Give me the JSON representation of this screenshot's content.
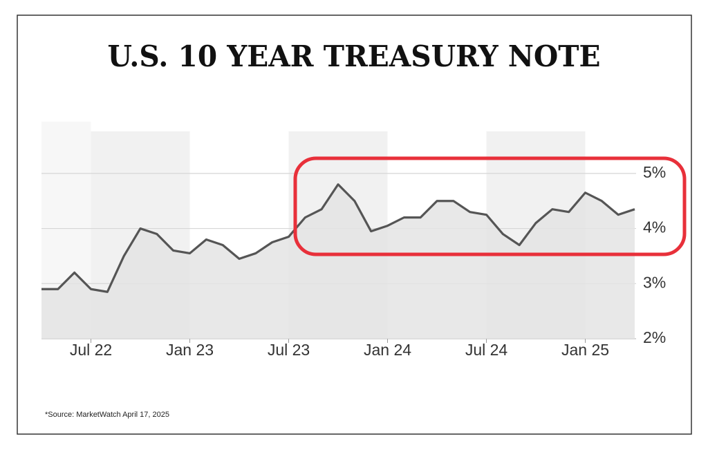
{
  "chart_data": {
    "type": "line",
    "title": "U.S. 10 YEAR TREASURY NOTE",
    "note": "*Source: MarketWatch April 17, 2025",
    "x": [
      "2022-04",
      "2022-05",
      "2022-06",
      "2022-07",
      "2022-08",
      "2022-09",
      "2022-10",
      "2022-11",
      "2022-12",
      "2023-01",
      "2023-02",
      "2023-03",
      "2023-04",
      "2023-05",
      "2023-06",
      "2023-07",
      "2023-08",
      "2023-09",
      "2023-10",
      "2023-11",
      "2023-12",
      "2024-01",
      "2024-02",
      "2024-03",
      "2024-04",
      "2024-05",
      "2024-06",
      "2024-07",
      "2024-08",
      "2024-09",
      "2024-10",
      "2024-11",
      "2024-12",
      "2025-01",
      "2025-02",
      "2025-03",
      "2025-04"
    ],
    "series": [
      {
        "name": "U.S. 10 Year Treasury Note",
        "color": "#555555",
        "values": [
          2.9,
          2.9,
          3.2,
          2.9,
          2.85,
          3.5,
          4.0,
          3.9,
          3.6,
          3.55,
          3.8,
          3.7,
          3.45,
          3.55,
          3.75,
          3.85,
          4.2,
          4.35,
          4.8,
          4.5,
          3.95,
          4.05,
          4.2,
          4.2,
          4.5,
          4.5,
          4.3,
          4.25,
          3.9,
          3.7,
          4.1,
          4.35,
          4.3,
          4.65,
          4.5,
          4.25,
          4.35
        ]
      }
    ],
    "fill": "#e4e4e4",
    "xlim": [
      "2022-04",
      "2025-04"
    ],
    "xticks": [
      {
        "value": "2022-07",
        "label": "Jul 22"
      },
      {
        "value": "2023-01",
        "label": "Jan 23"
      },
      {
        "value": "2023-07",
        "label": "Jul 23"
      },
      {
        "value": "2024-01",
        "label": "Jan 24"
      },
      {
        "value": "2024-07",
        "label": "Jul 24"
      },
      {
        "value": "2025-01",
        "label": "Jan 25"
      }
    ],
    "ylim": [
      2,
      5.5
    ],
    "yticks": [
      {
        "value": 2,
        "label": "2%"
      },
      {
        "value": 3,
        "label": "3%"
      },
      {
        "value": 4,
        "label": "4%"
      },
      {
        "value": 5,
        "label": "5%"
      }
    ],
    "grid": true
  }
}
